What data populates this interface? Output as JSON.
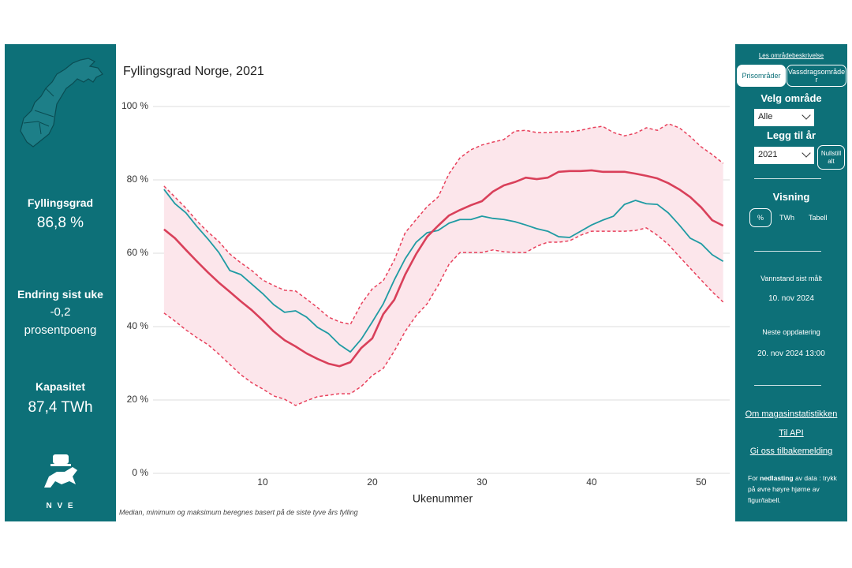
{
  "left_panel": {
    "fill_label": "Fyllingsgrad",
    "fill_value": "86,8 %",
    "change_label": "Endring sist uke",
    "change_value": "-0,2",
    "change_unit": "prosentpoeng",
    "capacity_label": "Kapasitet",
    "capacity_value": "87,4 TWh",
    "logo_text": "N V E"
  },
  "chart_data": {
    "type": "line",
    "title": "Fyllingsgrad Norge, 2021",
    "xlabel": "Ukenummer",
    "note": "Median, minimum og maksimum beregnes basert på de siste tyve års fylling",
    "x": [
      1,
      2,
      3,
      4,
      5,
      6,
      7,
      8,
      9,
      10,
      11,
      12,
      13,
      14,
      15,
      16,
      17,
      18,
      19,
      20,
      21,
      22,
      23,
      24,
      25,
      26,
      27,
      28,
      29,
      30,
      31,
      32,
      33,
      34,
      35,
      36,
      37,
      38,
      39,
      40,
      41,
      42,
      43,
      44,
      45,
      46,
      47,
      48,
      49,
      50,
      51,
      52
    ],
    "xlim": [
      0,
      52.6
    ],
    "xticks": [
      10,
      20,
      30,
      40,
      50
    ],
    "ylim": [
      0,
      100
    ],
    "yticks": [
      {
        "value": 0,
        "label": "0 %"
      },
      {
        "value": 20,
        "label": "20 %"
      },
      {
        "value": 40,
        "label": "40 %"
      },
      {
        "value": 60,
        "label": "60 %"
      },
      {
        "value": 80,
        "label": "80 %"
      },
      {
        "value": 100,
        "label": "100 %"
      }
    ],
    "grid": true,
    "band_color": "#fce6eb",
    "series": [
      {
        "color": "#1f9ba3",
        "dashed": false,
        "values": [
          77.4,
          73.5,
          71,
          67.3,
          63.9,
          60.2,
          55.3,
          54.2,
          51.6,
          49,
          46,
          43.9,
          44.3,
          42.6,
          39.8,
          38.1,
          35.1,
          33.1,
          36.6,
          41.3,
          46.2,
          52.7,
          58.5,
          63,
          65.6,
          66.2,
          68.2,
          69.2,
          69.2,
          70.1,
          69.5,
          69.2,
          68.6,
          67.7,
          66.7,
          66,
          64.5,
          64.3,
          66,
          67.7,
          69,
          70.1,
          73.3,
          74.4,
          73.5,
          73.3,
          71,
          67.7,
          64.1,
          62.6,
          59.6,
          57.8
        ]
      },
      {
        "color": "#d9405a",
        "dashed": false,
        "values": [
          66.5,
          64.1,
          60.9,
          57.8,
          54.8,
          52,
          49.5,
          46.9,
          44.5,
          41.7,
          38.7,
          36.3,
          34.6,
          32.7,
          31.2,
          29.9,
          29.2,
          30.3,
          34.2,
          36.8,
          43.4,
          47.3,
          54.2,
          59.8,
          64.5,
          67.5,
          70.3,
          71.8,
          73.1,
          74.2,
          76.8,
          78.5,
          79.4,
          80.6,
          80.2,
          80.6,
          82.2,
          82.4,
          82.4,
          82.6,
          82.2,
          82.2,
          82.2,
          81.7,
          81.1,
          80.4,
          79.1,
          77.4,
          75.3,
          72.5,
          69,
          67.5
        ]
      },
      {
        "color": "#e8415c",
        "dashed": true,
        "values": [
          78.3,
          75.3,
          72.3,
          68.8,
          65.8,
          63.2,
          59.8,
          57.4,
          55.3,
          52.7,
          51.2,
          49.9,
          49.7,
          47.5,
          45.2,
          42.6,
          41.3,
          40.6,
          46.2,
          50.3,
          52.5,
          58.1,
          65.6,
          69.2,
          72.7,
          75.3,
          81.7,
          86,
          88.2,
          89.5,
          90.3,
          91,
          93.3,
          93.5,
          92.9,
          92.9,
          93.1,
          93.1,
          93.5,
          94.2,
          94.6,
          92.9,
          92,
          92.7,
          94.2,
          93.5,
          95.3,
          94.2,
          91.8,
          89,
          86.9,
          84.5
        ]
      },
      {
        "color": "#e8415c",
        "dashed": true,
        "values": [
          43.7,
          41.5,
          39.1,
          37,
          35.1,
          32.5,
          29.7,
          26.9,
          24.7,
          23,
          21.1,
          20.2,
          18.5,
          19.8,
          20.9,
          21.3,
          21.7,
          21.7,
          23.7,
          26.7,
          28.6,
          33.3,
          38.7,
          43,
          46.2,
          51.2,
          57,
          60.2,
          60.2,
          60.2,
          60.9,
          60.4,
          60.2,
          60.2,
          61.9,
          63,
          63,
          63.4,
          64.9,
          66,
          66,
          66,
          66,
          66.2,
          66.9,
          64.9,
          62.4,
          59.1,
          55.9,
          52.7,
          49.5,
          46.7
        ]
      }
    ]
  },
  "right_panel": {
    "area_link": "Les områdebeskrivelse",
    "tab_price": "Prisområder",
    "tab_water": "Vassdragsområder",
    "area_label": "Velg område",
    "area_value": "Alle",
    "year_label": "Legg til år",
    "year_value": "2021",
    "reset": "Nullstill alt",
    "view_label": "Visning",
    "view_pct": "%",
    "view_twh": "TWh",
    "view_table": "Tabell",
    "measured_label": "Vannstand sist målt",
    "measured_date": "10. nov 2024",
    "next_label": "Neste oppdatering",
    "next_date": "20. nov 2024 13:00",
    "link_about": "Om magasinstatistikken",
    "link_api": "Til API",
    "link_feedback": "Gi oss tilbakemelding",
    "download_pre": "For",
    "download_bold": "nedlasting",
    "download_post": "av data : trykk på øvre høyre hjørne av figur/tabell."
  }
}
